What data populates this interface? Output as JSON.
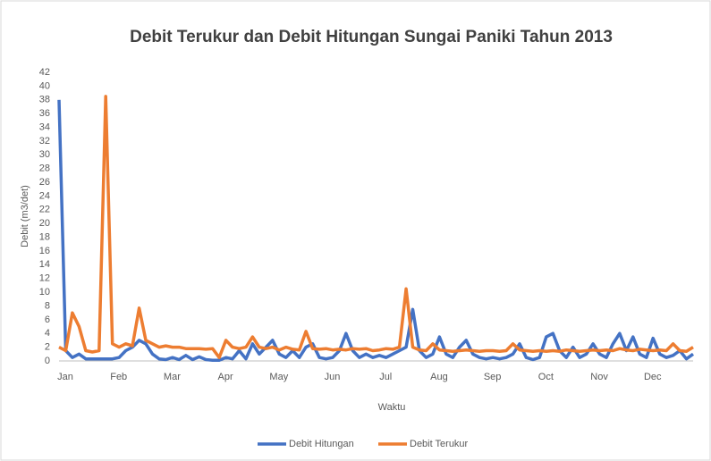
{
  "chart_data": {
    "type": "line",
    "title": "Debit Terukur dan Debit Hitungan Sungai Paniki Tahun 2013",
    "x_label": "Waktu",
    "y_label": "Debit (m3/det)",
    "categories": [
      "Jan",
      null,
      null,
      null,
      null,
      null,
      null,
      null,
      "Feb",
      null,
      null,
      null,
      null,
      null,
      null,
      null,
      "Mar",
      null,
      null,
      null,
      null,
      null,
      null,
      null,
      "Apr",
      null,
      null,
      null,
      null,
      null,
      null,
      null,
      "May",
      null,
      null,
      null,
      null,
      null,
      null,
      null,
      "Jun",
      null,
      null,
      null,
      null,
      null,
      null,
      null,
      "Jul",
      null,
      null,
      null,
      null,
      null,
      null,
      null,
      "Aug",
      null,
      null,
      null,
      null,
      null,
      null,
      null,
      "Sep",
      null,
      null,
      null,
      null,
      null,
      null,
      null,
      "Oct",
      null,
      null,
      null,
      null,
      null,
      null,
      null,
      "Nov",
      null,
      null,
      null,
      null,
      null,
      null,
      null,
      "Dec",
      null,
      null,
      null,
      null,
      null,
      null,
      null
    ],
    "series": [
      {
        "name": "Debit Hitungan",
        "color": "#4472c4",
        "values": [
          38,
          1.5,
          0.5,
          1,
          0.3,
          0.3,
          0.3,
          0.3,
          0.3,
          0.5,
          1.5,
          2,
          3,
          2.5,
          1,
          0.3,
          0.2,
          0.5,
          0.2,
          0.8,
          0.2,
          0.6,
          0.2,
          0.1,
          0.1,
          0.5,
          0.3,
          1.5,
          0.3,
          2.5,
          1,
          2,
          3,
          1,
          0.5,
          1.5,
          0.5,
          2,
          2.5,
          0.5,
          0.3,
          0.5,
          1.5,
          4,
          1.5,
          0.5,
          1,
          0.5,
          0.8,
          0.5,
          1,
          1.5,
          2,
          7.5,
          1.5,
          0.5,
          1,
          3.5,
          1,
          0.5,
          2,
          3,
          1,
          0.5,
          0.3,
          0.5,
          0.3,
          0.5,
          1,
          2.5,
          0.5,
          0.2,
          0.5,
          3.5,
          4,
          1.5,
          0.5,
          2,
          0.5,
          1,
          2.5,
          1,
          0.5,
          2.5,
          4,
          1.5,
          3.5,
          1,
          0.5,
          3.3,
          1,
          0.5,
          0.8,
          1.5,
          0.3,
          1
        ]
      },
      {
        "name": "Debit Terukur",
        "color": "#ed7d31",
        "values": [
          2,
          1.5,
          7,
          5,
          1.5,
          1.3,
          1.5,
          38.5,
          2.5,
          2,
          2.5,
          2.2,
          7.7,
          3,
          2.5,
          2,
          2.2,
          2,
          2,
          1.8,
          1.8,
          1.8,
          1.7,
          1.8,
          0.5,
          3,
          2,
          1.8,
          2,
          3.5,
          2,
          1.8,
          2,
          1.6,
          2,
          1.7,
          1.6,
          4.3,
          1.8,
          1.7,
          1.8,
          1.6,
          1.7,
          1.6,
          1.8,
          1.7,
          1.8,
          1.5,
          1.6,
          1.8,
          1.7,
          2,
          10.5,
          2,
          1.6,
          1.5,
          2.5,
          1.6,
          1.5,
          1.4,
          1.5,
          1.6,
          1.5,
          1.4,
          1.5,
          1.5,
          1.4,
          1.5,
          2.5,
          1.6,
          1.5,
          1.4,
          1.5,
          1.4,
          1.5,
          1.4,
          1.6,
          1.5,
          1.4,
          1.5,
          1.6,
          1.5,
          1.6,
          1.5,
          1.8,
          1.6,
          1.5,
          1.7,
          1.6,
          1.5,
          1.6,
          1.5,
          2.5,
          1.5,
          1.4,
          2
        ]
      }
    ],
    "ylim": [
      0,
      42
    ],
    "yticks": [
      0,
      2,
      4,
      6,
      8,
      10,
      12,
      14,
      16,
      18,
      20,
      22,
      24,
      26,
      28,
      30,
      32,
      34,
      36,
      38,
      40,
      42
    ],
    "grid": false,
    "legend": "bottom"
  }
}
